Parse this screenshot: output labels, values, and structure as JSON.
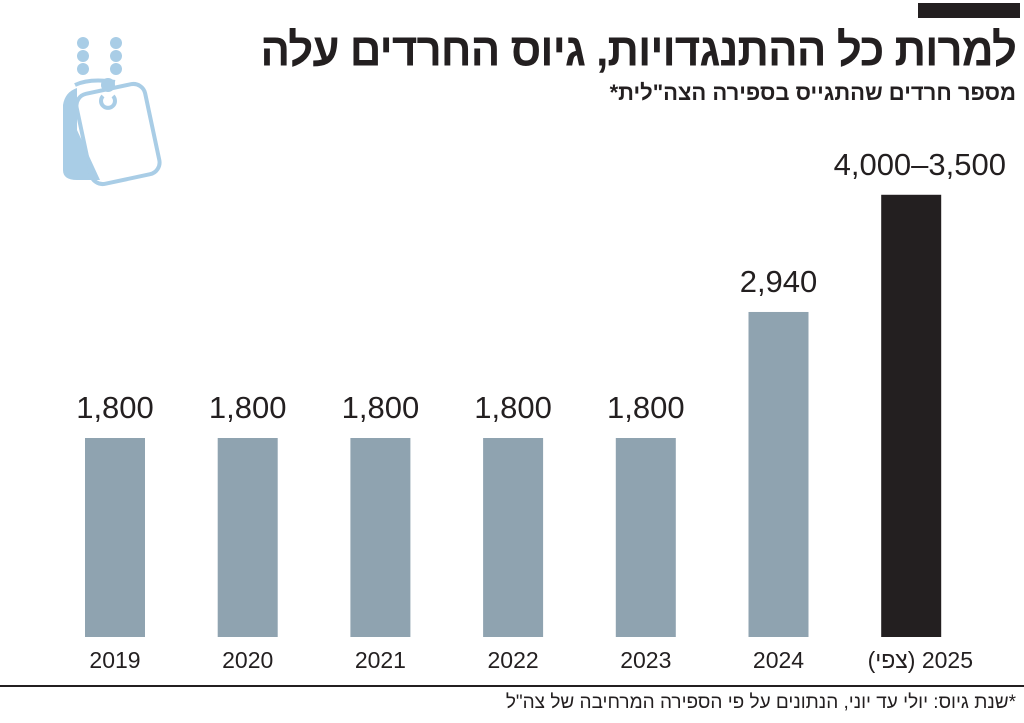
{
  "title": "למרות כל ההתנגדויות, גיוס החרדים עלה",
  "subtitle": "מספר חרדים שהתגייס בספירה הצה\"לית*",
  "footnote": "*שנת גיוס: יולי עד יוני, הנתונים על פי הספירה המרחיבה של צה\"ל",
  "icon": "dog-tags-icon",
  "colors": {
    "bar": "#8fa3b0",
    "highlight": "#231f20",
    "icon": "#a9cde6",
    "text": "#231f20"
  },
  "chart_data": {
    "type": "bar",
    "categories": [
      "2019",
      "2020",
      "2021",
      "2022",
      "2023",
      "2024",
      "2025 (צפי)"
    ],
    "values": [
      1800,
      1800,
      1800,
      1800,
      1800,
      2940,
      4000
    ],
    "data_labels": [
      "1,800",
      "1,800",
      "1,800",
      "1,800",
      "1,800",
      "2,940",
      "4,000–3,500"
    ],
    "highlight_index": 6,
    "title": "למרות כל ההתנגדויות, גיוס החרדים עלה",
    "subtitle": "מספר חרדים שהתגייס בספירה הצה\"לית*",
    "xlabel": "",
    "ylabel": "",
    "ylim": [
      0,
      4000
    ],
    "grid": false,
    "legend": "none"
  }
}
